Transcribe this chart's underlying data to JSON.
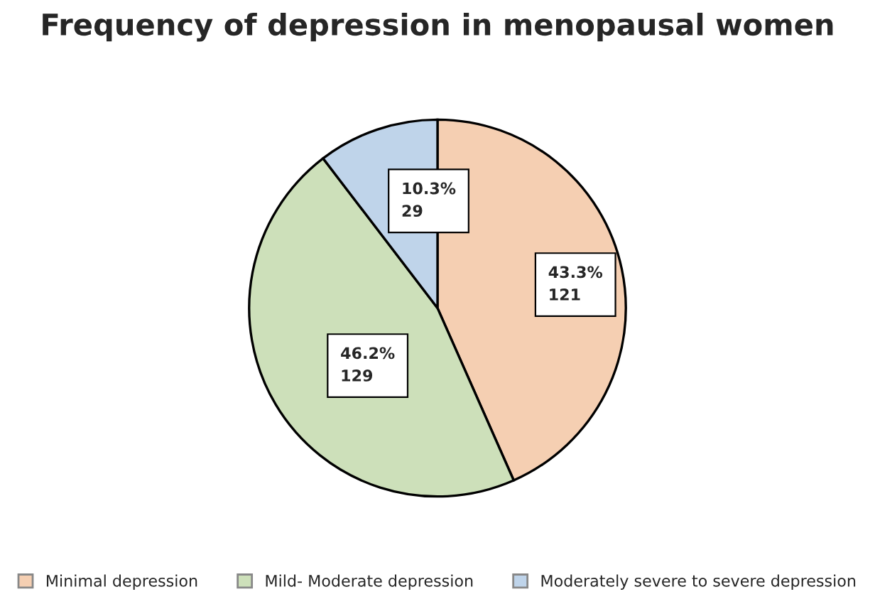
{
  "chart_data": {
    "type": "pie",
    "title": "Frequency of depression in menopausal women",
    "categories": [
      "Minimal depression",
      "Mild- Moderate depression",
      "Moderately severe to severe depression"
    ],
    "values": [
      121,
      129,
      29
    ],
    "value_labels": [
      "43.3%\n121",
      "46.2%\n129",
      "10.3%\n29"
    ],
    "colors": [
      "#f5cfb2",
      "#cde0ba",
      "#bfd4ea"
    ],
    "legend": "bottom"
  }
}
